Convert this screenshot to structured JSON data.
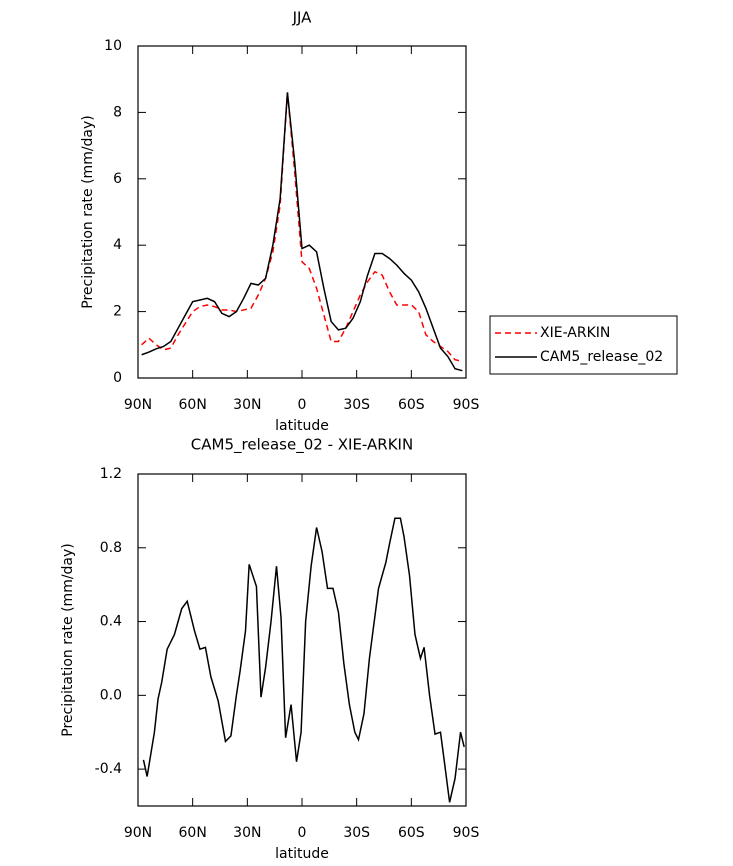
{
  "chart_data": [
    {
      "type": "line",
      "title": "JJA",
      "x_label": "latitude",
      "y_label": "Precipitation rate (mm/day)",
      "x": [
        88,
        84,
        80,
        76,
        72,
        68,
        64,
        60,
        56,
        52,
        48,
        44,
        40,
        36,
        32,
        28,
        24,
        20,
        16,
        12,
        8,
        4,
        0,
        -4,
        -8,
        -12,
        -16,
        -20,
        -24,
        -28,
        -32,
        -36,
        -40,
        -44,
        -48,
        -52,
        -56,
        -60,
        -64,
        -68,
        -72,
        -76,
        -80,
        -84,
        -88
      ],
      "series": [
        {
          "name": "XIE-ARKIN",
          "color": "#ff0000",
          "line_style": "dashed",
          "values": [
            1.0,
            1.2,
            1.0,
            0.85,
            0.9,
            1.3,
            1.65,
            2.0,
            2.15,
            2.2,
            2.15,
            2.05,
            2.05,
            2.0,
            2.05,
            2.1,
            2.5,
            3.0,
            3.8,
            5.2,
            8.6,
            6.2,
            3.5,
            3.3,
            2.7,
            1.9,
            1.1,
            1.1,
            1.5,
            2.0,
            2.5,
            2.9,
            3.2,
            3.1,
            2.6,
            2.2,
            2.2,
            2.2,
            2.0,
            1.3,
            1.1,
            0.95,
            0.8,
            0.55,
            0.5
          ]
        },
        {
          "name": "CAM5_release_02",
          "color": "#000000",
          "line_style": "solid",
          "values": [
            0.7,
            0.78,
            0.88,
            0.95,
            1.1,
            1.5,
            1.9,
            2.3,
            2.35,
            2.4,
            2.3,
            1.95,
            1.85,
            2.0,
            2.4,
            2.85,
            2.8,
            3.0,
            4.0,
            5.4,
            8.6,
            6.5,
            3.9,
            4.0,
            3.8,
            2.7,
            1.7,
            1.45,
            1.5,
            1.8,
            2.3,
            3.1,
            3.75,
            3.75,
            3.6,
            3.4,
            3.15,
            2.95,
            2.6,
            2.1,
            1.5,
            0.9,
            0.65,
            0.28,
            0.22
          ]
        }
      ],
      "xlim": [
        90,
        -90
      ],
      "xticks": [
        {
          "value": 90,
          "label": "90N"
        },
        {
          "value": 60,
          "label": "60N"
        },
        {
          "value": 30,
          "label": "30N"
        },
        0,
        {
          "value": -30,
          "label": "30S"
        },
        {
          "value": -60,
          "label": "60S"
        },
        {
          "value": -90,
          "label": "90S"
        }
      ],
      "ylim": [
        0,
        10
      ],
      "yticks": [
        0,
        2,
        4,
        6,
        8,
        10
      ],
      "grid": false,
      "legend": "outside right"
    },
    {
      "type": "line",
      "title": "CAM5_release_02 - XIE-ARKIN",
      "x_label": "latitude",
      "y_label": "Precipitation rate (mm/day)",
      "x": [
        87,
        85,
        81,
        79,
        77,
        74,
        70,
        66,
        63,
        59,
        56,
        53,
        50,
        46,
        42,
        39,
        36,
        34,
        31,
        29,
        25,
        22.5,
        20,
        17,
        14,
        11.5,
        9,
        6,
        3,
        0.5,
        -2,
        -5,
        -8,
        -11,
        -14,
        -17,
        -20,
        -23,
        -26,
        -29,
        -31,
        -34,
        -37,
        -42,
        -46,
        -48,
        -51,
        -54,
        -56,
        -59,
        -62,
        -65,
        -67,
        -70,
        -73,
        -76,
        -78,
        -81,
        -84,
        -87,
        -89
      ],
      "series": [
        {
          "color": "#000000",
          "line_style": "solid",
          "values": [
            -0.35,
            -0.44,
            -0.2,
            -0.02,
            0.07,
            0.25,
            0.33,
            0.47,
            0.51,
            0.35,
            0.25,
            0.26,
            0.1,
            -0.03,
            -0.25,
            -0.22,
            0.0,
            0.13,
            0.35,
            0.71,
            0.59,
            -0.01,
            0.15,
            0.4,
            0.7,
            0.42,
            -0.23,
            -0.05,
            -0.36,
            -0.2,
            0.4,
            0.7,
            0.91,
            0.78,
            0.58,
            0.58,
            0.45,
            0.17,
            -0.05,
            -0.2,
            -0.24,
            -0.1,
            0.2,
            0.58,
            0.72,
            0.82,
            0.96,
            0.96,
            0.86,
            0.65,
            0.33,
            0.2,
            0.26,
            0.0,
            -0.21,
            -0.2,
            -0.35,
            -0.58,
            -0.45,
            -0.2,
            -0.28
          ]
        }
      ],
      "xlim": [
        90,
        -90
      ],
      "xticks": [
        {
          "value": 90,
          "label": "90N"
        },
        {
          "value": 60,
          "label": "60N"
        },
        {
          "value": 30,
          "label": "30N"
        },
        0,
        {
          "value": -30,
          "label": "30S"
        },
        {
          "value": -60,
          "label": "60S"
        },
        {
          "value": -90,
          "label": "90S"
        }
      ],
      "ylim": [
        -0.6,
        1.2
      ],
      "yticks": [
        -0.4,
        {
          "value": 0,
          "label": "0.0"
        },
        0.4,
        0.8,
        1.2
      ],
      "grid": false
    }
  ]
}
